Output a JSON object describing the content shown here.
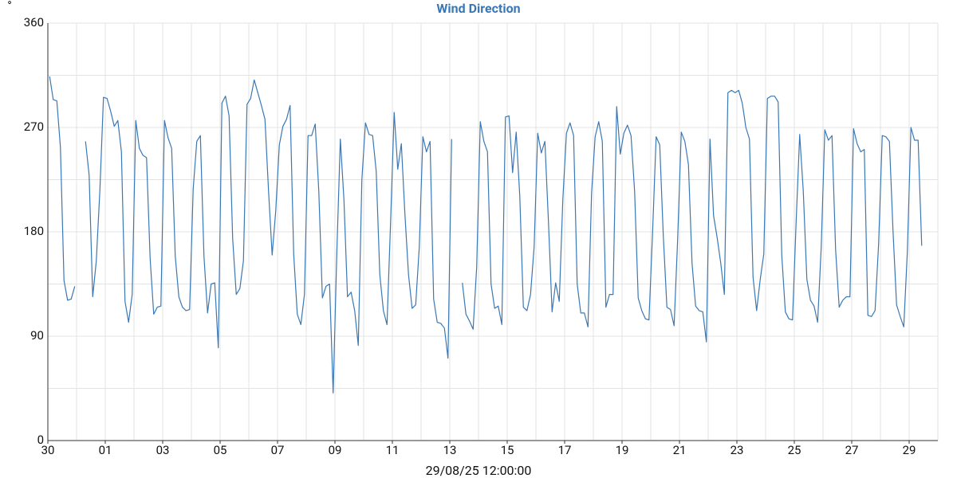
{
  "chart_data": {
    "type": "line",
    "title": "Wind Direction",
    "ylabel": "°",
    "xlabel": "29/08/25 12:00:00",
    "color": "#3a78b5",
    "grid": true,
    "ylim": [
      0,
      360
    ],
    "yticks": [
      0,
      90,
      180,
      270,
      360
    ],
    "xlim": [
      0,
      744
    ],
    "xticks": [
      {
        "value": 0,
        "label": "30"
      },
      {
        "value": 48,
        "label": "01"
      },
      {
        "value": 96,
        "label": "03"
      },
      {
        "value": 144,
        "label": "05"
      },
      {
        "value": 192,
        "label": "07"
      },
      {
        "value": 240,
        "label": "09"
      },
      {
        "value": 288,
        "label": "11"
      },
      {
        "value": 336,
        "label": "13"
      },
      {
        "value": 384,
        "label": "15"
      },
      {
        "value": 432,
        "label": "17"
      },
      {
        "value": 480,
        "label": "19"
      },
      {
        "value": 528,
        "label": "21"
      },
      {
        "value": 576,
        "label": "23"
      },
      {
        "value": 624,
        "label": "25"
      },
      {
        "value": 672,
        "label": "27"
      },
      {
        "value": 720,
        "label": "29"
      }
    ],
    "x": [
      1.5,
      4.5,
      7.5,
      10.5,
      13.5,
      16.5,
      19.5,
      22.5,
      25.5,
      28.5,
      31.5,
      34.5,
      37.5,
      40.5,
      43.5,
      46.5,
      49.5,
      52.5,
      55.5,
      58.5,
      61.5,
      64.5,
      67.5,
      70.5,
      73.5,
      76.5,
      79.5,
      82.5,
      85.5,
      88.5,
      91.5,
      94.5,
      97.5,
      100.5,
      103.5,
      106.5,
      109.5,
      112.5,
      115.5,
      118.5,
      121.5,
      124.5,
      127.5,
      130.5,
      133.5,
      136.5,
      139.5,
      142.5,
      145.5,
      148.5,
      151.5,
      154.5,
      157.5,
      160.5,
      163.5,
      166.5,
      169.5,
      172.5,
      175.5,
      178.5,
      181.5,
      184.5,
      187.5,
      190.5,
      193.5,
      196.5,
      199.5,
      202.5,
      205.5,
      208.5,
      211.5,
      214.5,
      217.5,
      220.5,
      223.5,
      226.5,
      229.5,
      232.5,
      235.5,
      238.5,
      241.5,
      244.5,
      247.5,
      250.5,
      253.5,
      256.5,
      259.5,
      262.5,
      265.5,
      268.5,
      271.5,
      274.5,
      277.5,
      280.5,
      283.5,
      286.5,
      289.5,
      292.5,
      295.5,
      298.5,
      301.5,
      304.5,
      307.5,
      310.5,
      313.5,
      316.5,
      319.5,
      322.5,
      325.5,
      328.5,
      331.5,
      334.5,
      337.5,
      340.5,
      343.5,
      346.5,
      349.5,
      352.5,
      355.5,
      358.5,
      361.5,
      364.5,
      367.5,
      370.5,
      373.5,
      376.5,
      379.5,
      382.5,
      385.5,
      388.5,
      391.5,
      394.5,
      397.5,
      400.5,
      403.5,
      406.5,
      409.5,
      412.5,
      415.5,
      418.5,
      421.5,
      424.5,
      427.5,
      430.5,
      433.5,
      436.5,
      439.5,
      442.5,
      445.5,
      448.5,
      451.5,
      454.5,
      457.5,
      460.5,
      463.5,
      466.5,
      469.5,
      472.5,
      475.5,
      478.5,
      481.5,
      484.5,
      487.5,
      490.5,
      493.5,
      496.5,
      499.5,
      502.5,
      505.5,
      508.5,
      511.5,
      514.5,
      517.5,
      520.5,
      523.5,
      526.5,
      529.5,
      532.5,
      535.5,
      538.5,
      541.5,
      544.5,
      547.5,
      550.5,
      553.5,
      556.5,
      559.5,
      562.5,
      565.5,
      568.5,
      571.5,
      574.5,
      577.5,
      580.5,
      583.5,
      586.5,
      589.5,
      592.5,
      595.5,
      598.5,
      601.5,
      604.5,
      607.5,
      610.5,
      613.5,
      616.5,
      619.5,
      622.5,
      625.5,
      628.5,
      631.5,
      634.5,
      637.5,
      640.5,
      643.5,
      646.5,
      649.5,
      652.5,
      655.5,
      658.5,
      661.5,
      664.5,
      667.5,
      670.5,
      673.5,
      676.5,
      679.5,
      682.5,
      685.5,
      688.5,
      691.5,
      694.5,
      697.5,
      700.5,
      703.5,
      706.5,
      709.5,
      712.5,
      715.5,
      718.5,
      721.5,
      724.5,
      727.5,
      730.5
    ],
    "values": [
      314,
      294,
      293,
      253,
      138,
      121,
      122,
      133,
      null,
      null,
      258,
      229,
      124,
      155,
      216,
      296,
      295,
      284,
      271,
      276,
      249,
      120,
      102,
      126,
      276,
      252,
      246,
      244,
      157,
      109,
      115,
      116,
      276,
      261,
      252,
      159,
      124,
      115,
      112,
      113,
      217,
      258,
      263,
      159,
      110,
      135,
      136,
      80,
      291,
      297,
      280,
      174,
      126,
      131,
      155,
      290,
      295,
      311,
      300,
      289,
      277,
      215,
      160,
      198,
      255,
      271,
      277,
      289,
      161,
      109,
      100,
      126,
      263,
      263,
      273,
      215,
      123,
      133,
      135,
      41,
      160,
      260,
      208,
      124,
      128,
      112,
      82,
      225,
      274,
      264,
      263,
      232,
      143,
      112,
      100,
      188,
      283,
      234,
      256,
      195,
      143,
      114,
      117,
      167,
      262,
      249,
      258,
      122,
      102,
      101,
      97,
      71,
      260,
      null,
      null,
      136,
      109,
      103,
      96,
      150,
      275,
      258,
      249,
      135,
      114,
      116,
      100,
      279,
      280,
      231,
      266,
      211,
      115,
      112,
      126,
      167,
      265,
      248,
      258,
      188,
      111,
      136,
      120,
      208,
      265,
      274,
      263,
      135,
      110,
      110,
      98,
      213,
      262,
      275,
      258,
      115,
      126,
      126,
      288,
      247,
      265,
      272,
      263,
      215,
      123,
      112,
      105,
      104,
      179,
      262,
      255,
      176,
      115,
      113,
      99,
      174,
      266,
      258,
      238,
      153,
      116,
      112,
      111,
      85,
      260,
      194,
      175,
      153,
      126,
      300,
      302,
      300,
      302,
      291,
      270,
      260,
      141,
      112,
      139,
      161,
      295,
      297,
      297,
      292,
      160,
      111,
      105,
      104,
      188,
      264,
      215,
      139,
      121,
      116,
      102,
      167,
      268,
      259,
      263,
      165,
      115,
      121,
      124,
      124,
      269,
      256,
      249,
      251,
      108,
      107,
      112,
      170,
      263,
      262,
      258,
      181,
      117,
      107,
      98,
      163,
      270,
      259,
      259,
      168
    ]
  }
}
